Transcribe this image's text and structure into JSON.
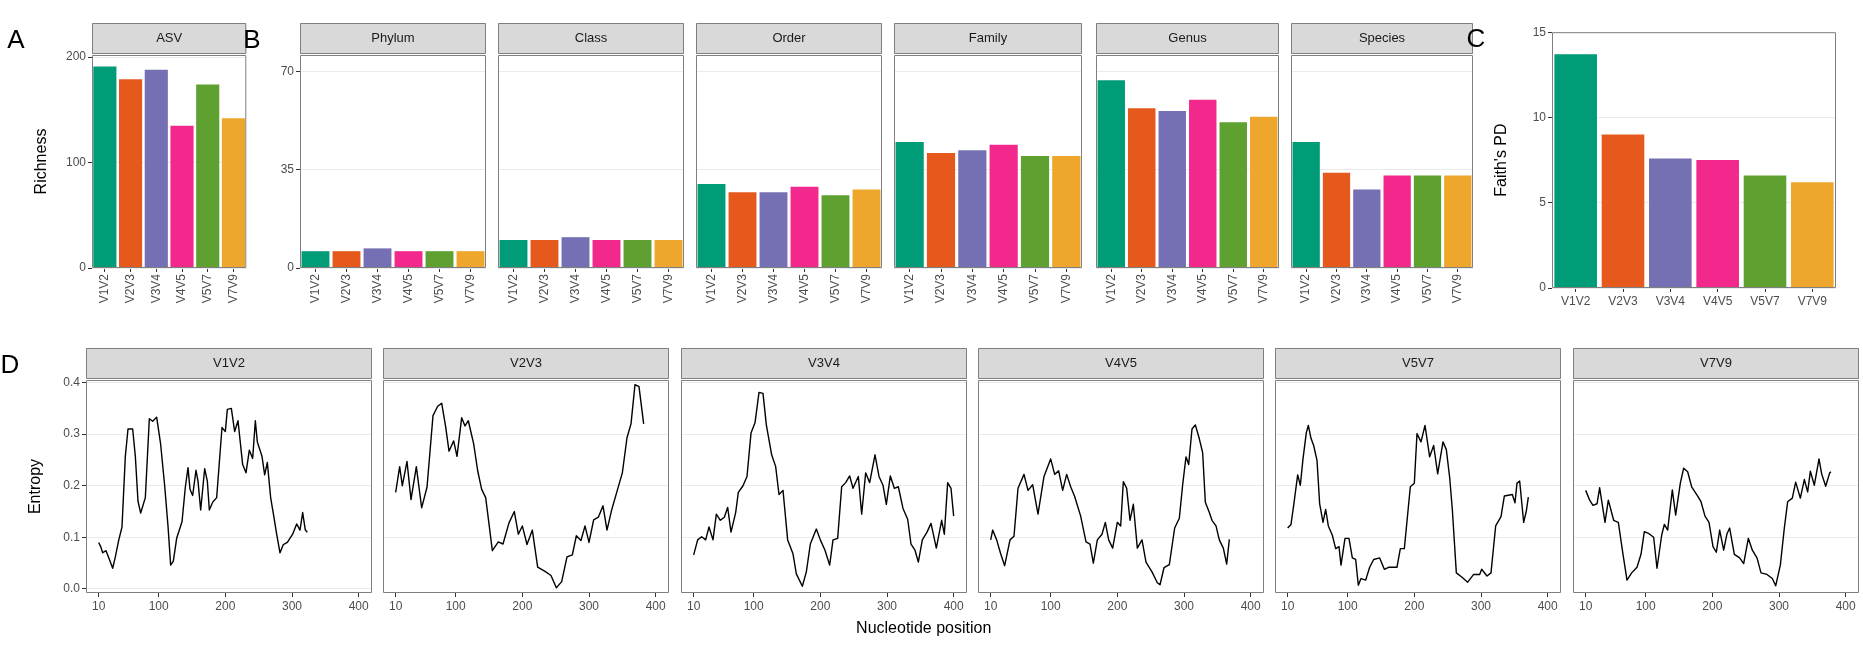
{
  "chart_data": [
    {
      "type": "bar",
      "title": "A",
      "subtitle": "ASV",
      "ylabel": "Richness",
      "categories": [
        "V1V2",
        "V2V3",
        "V3V4",
        "V4V5",
        "V5V7",
        "V7V9"
      ],
      "values": [
        191,
        179,
        188,
        135,
        174,
        142
      ],
      "colors": [
        "#009b77",
        "#e5591c",
        "#7470b3",
        "#f2288c",
        "#5fa131",
        "#eea62c"
      ],
      "ylim": [
        0,
        202
      ],
      "yticks": [
        0,
        100,
        200
      ],
      "grid": "y"
    },
    {
      "type": "bar",
      "title": "B",
      "subtitle": "Phylum",
      "categories": [
        "V1V2",
        "V2V3",
        "V3V4",
        "V4V5",
        "V5V7",
        "V7V9"
      ],
      "values": [
        6,
        6,
        7,
        6,
        6,
        6
      ],
      "colors": [
        "#009b77",
        "#e5591c",
        "#7470b3",
        "#f2288c",
        "#5fa131",
        "#eea62c"
      ],
      "ylim": [
        0,
        76
      ],
      "yticks": [
        0,
        35,
        70
      ],
      "grid": "y"
    },
    {
      "type": "bar",
      "subtitle": "Class",
      "categories": [
        "V1V2",
        "V2V3",
        "V3V4",
        "V4V5",
        "V5V7",
        "V7V9"
      ],
      "values": [
        10,
        10,
        11,
        10,
        10,
        10
      ],
      "colors": [
        "#009b77",
        "#e5591c",
        "#7470b3",
        "#f2288c",
        "#5fa131",
        "#eea62c"
      ],
      "ylim": [
        0,
        76
      ],
      "yticks": [
        0,
        35,
        70
      ],
      "grid": "y",
      "tick_labels": "x"
    },
    {
      "type": "bar",
      "subtitle": "Order",
      "categories": [
        "V1V2",
        "V2V3",
        "V3V4",
        "V4V5",
        "V5V7",
        "V7V9"
      ],
      "values": [
        30,
        27,
        27,
        29,
        26,
        28
      ],
      "colors": [
        "#009b77",
        "#e5591c",
        "#7470b3",
        "#f2288c",
        "#5fa131",
        "#eea62c"
      ],
      "ylim": [
        0,
        76
      ],
      "yticks": [
        0,
        35,
        70
      ],
      "grid": "y",
      "tick_labels": "x"
    },
    {
      "type": "bar",
      "subtitle": "Family",
      "categories": [
        "V1V2",
        "V2V3",
        "V3V4",
        "V4V5",
        "V5V7",
        "V7V9"
      ],
      "values": [
        45,
        41,
        42,
        44,
        40,
        40
      ],
      "colors": [
        "#009b77",
        "#e5591c",
        "#7470b3",
        "#f2288c",
        "#5fa131",
        "#eea62c"
      ],
      "ylim": [
        0,
        76
      ],
      "yticks": [
        0,
        35,
        70
      ],
      "grid": "y",
      "tick_labels": "x"
    },
    {
      "type": "bar",
      "subtitle": "Genus",
      "categories": [
        "V1V2",
        "V2V3",
        "V3V4",
        "V4V5",
        "V5V7",
        "V7V9"
      ],
      "values": [
        67,
        57,
        56,
        60,
        52,
        54
      ],
      "colors": [
        "#009b77",
        "#e5591c",
        "#7470b3",
        "#f2288c",
        "#5fa131",
        "#eea62c"
      ],
      "ylim": [
        0,
        76
      ],
      "yticks": [
        0,
        35,
        70
      ],
      "grid": "y",
      "tick_labels": "x"
    },
    {
      "type": "bar",
      "subtitle": "Species",
      "categories": [
        "V1V2",
        "V2V3",
        "V3V4",
        "V4V5",
        "V5V7",
        "V7V9"
      ],
      "values": [
        45,
        34,
        28,
        33,
        33,
        33
      ],
      "colors": [
        "#009b77",
        "#e5591c",
        "#7470b3",
        "#f2288c",
        "#5fa131",
        "#eea62c"
      ],
      "ylim": [
        0,
        76
      ],
      "yticks": [
        0,
        35,
        70
      ],
      "grid": "y",
      "tick_labels": "x"
    },
    {
      "type": "bar",
      "title": "C",
      "ylabel": "Faith's PD",
      "categories": [
        "V1V2",
        "V2V3",
        "V3V4",
        "V4V5",
        "V5V7",
        "V7V9"
      ],
      "values": [
        13.7,
        9.0,
        7.6,
        7.5,
        6.6,
        6.2
      ],
      "colors": [
        "#009b77",
        "#e5591c",
        "#7470b3",
        "#f2288c",
        "#5fa131",
        "#eea62c"
      ],
      "ylim": [
        0,
        15
      ],
      "yticks": [
        0,
        5,
        10,
        15
      ],
      "grid": "y"
    },
    {
      "type": "line",
      "title": "D",
      "subtitle": "V1V2",
      "ylabel": "Entropy",
      "color": "#000000",
      "xlim": [
        -9,
        420
      ],
      "xticks": [
        10,
        100,
        200,
        300,
        400
      ],
      "ylim": [
        -0.008,
        0.405
      ],
      "yticks": [
        {
          "value": 0,
          "label": "0.0"
        },
        0.1,
        0.2,
        0.3,
        0.4
      ],
      "grid": "y",
      "x": [
        10,
        13,
        16,
        21,
        27,
        31,
        35,
        40,
        45,
        50,
        54,
        61,
        65,
        69,
        73,
        80,
        86,
        91,
        97,
        103,
        109,
        114,
        118,
        122,
        127,
        135,
        140,
        144,
        147,
        151,
        156,
        159,
        163,
        169,
        173,
        176,
        181,
        187,
        195,
        200,
        203,
        209,
        214,
        219,
        226,
        231,
        236,
        241,
        245,
        248,
        255,
        259,
        263,
        268,
        273,
        277,
        282,
        287,
        293,
        301,
        307,
        312,
        316,
        320,
        323
      ],
      "values": [
        0.09,
        0.082,
        0.07,
        0.074,
        0.054,
        0.04,
        0.062,
        0.094,
        0.12,
        0.257,
        0.31,
        0.31,
        0.257,
        0.17,
        0.147,
        0.177,
        0.33,
        0.325,
        0.333,
        0.28,
        0.2,
        0.122,
        0.046,
        0.054,
        0.098,
        0.13,
        0.197,
        0.235,
        0.193,
        0.181,
        0.23,
        0.209,
        0.153,
        0.233,
        0.209,
        0.153,
        0.168,
        0.177,
        0.313,
        0.305,
        0.348,
        0.35,
        0.305,
        0.326,
        0.241,
        0.225,
        0.269,
        0.253,
        0.326,
        0.285,
        0.257,
        0.221,
        0.245,
        0.177,
        0.138,
        0.106,
        0.07,
        0.086,
        0.09,
        0.106,
        0.126,
        0.114,
        0.148,
        0.114,
        0.11
      ]
    },
    {
      "type": "line",
      "subtitle": "V2V3",
      "color": "#000000",
      "xlim": [
        -9,
        420
      ],
      "xticks": [
        10,
        100,
        200,
        300,
        400
      ],
      "ylim": [
        -0.008,
        0.405
      ],
      "yticks": [
        0.1,
        0.2,
        0.3,
        0.4
      ],
      "grid": "y",
      "tick_labels": "x",
      "x": [
        10,
        16,
        20,
        27,
        33,
        41,
        49,
        57,
        66,
        73,
        79,
        85,
        90,
        97,
        102,
        109,
        114,
        119,
        127,
        133,
        139,
        145,
        150,
        155,
        164,
        171,
        180,
        188,
        194,
        200,
        207,
        215,
        223,
        234,
        243,
        251,
        259,
        267,
        275,
        281,
        288,
        294,
        300,
        307,
        314,
        321,
        327,
        334,
        342,
        350,
        357,
        363,
        369,
        375,
        382
      ],
      "values": [
        0.187,
        0.237,
        0.2,
        0.247,
        0.173,
        0.237,
        0.157,
        0.197,
        0.336,
        0.354,
        0.36,
        0.314,
        0.267,
        0.287,
        0.257,
        0.332,
        0.316,
        0.326,
        0.281,
        0.229,
        0.193,
        0.177,
        0.126,
        0.074,
        0.091,
        0.087,
        0.128,
        0.15,
        0.106,
        0.122,
        0.086,
        0.114,
        0.042,
        0.034,
        0.026,
        0.002,
        0.014,
        0.062,
        0.066,
        0.103,
        0.094,
        0.122,
        0.09,
        0.134,
        0.139,
        0.161,
        0.114,
        0.153,
        0.189,
        0.225,
        0.293,
        0.32,
        0.396,
        0.392,
        0.32
      ]
    },
    {
      "type": "line",
      "subtitle": "V3V4",
      "xlabel": "Nucleotide position",
      "color": "#000000",
      "xlim": [
        -9,
        420
      ],
      "xticks": [
        10,
        100,
        200,
        300,
        400
      ],
      "ylim": [
        -0.008,
        0.405
      ],
      "yticks": [
        0.1,
        0.2,
        0.3,
        0.4
      ],
      "grid": "y",
      "tick_labels": "x",
      "x": [
        10,
        16,
        22,
        28,
        33,
        39,
        44,
        50,
        56,
        61,
        66,
        73,
        77,
        84,
        90,
        96,
        102,
        108,
        114,
        119,
        127,
        133,
        138,
        144,
        151,
        159,
        164,
        173,
        179,
        185,
        194,
        200,
        207,
        214,
        219,
        226,
        232,
        238,
        244,
        249,
        257,
        262,
        268,
        274,
        282,
        288,
        294,
        299,
        305,
        311,
        317,
        324,
        331,
        336,
        342,
        347,
        353,
        360,
        366,
        374,
        382,
        386,
        391,
        396,
        400
      ],
      "values": [
        0.066,
        0.095,
        0.101,
        0.095,
        0.12,
        0.095,
        0.145,
        0.133,
        0.139,
        0.158,
        0.11,
        0.148,
        0.187,
        0.2,
        0.218,
        0.302,
        0.322,
        0.381,
        0.379,
        0.318,
        0.26,
        0.237,
        0.183,
        0.191,
        0.095,
        0.068,
        0.029,
        0.005,
        0.033,
        0.087,
        0.116,
        0.095,
        0.075,
        0.046,
        0.095,
        0.098,
        0.198,
        0.206,
        0.219,
        0.195,
        0.218,
        0.145,
        0.225,
        0.206,
        0.26,
        0.218,
        0.201,
        0.164,
        0.219,
        0.195,
        0.198,
        0.156,
        0.135,
        0.087,
        0.075,
        0.052,
        0.095,
        0.11,
        0.127,
        0.079,
        0.133,
        0.106,
        0.206,
        0.195,
        0.141
      ]
    },
    {
      "type": "line",
      "subtitle": "V4V5",
      "color": "#000000",
      "xlim": [
        -9,
        420
      ],
      "xticks": [
        10,
        100,
        200,
        300,
        400
      ],
      "ylim": [
        -0.008,
        0.405
      ],
      "yticks": [
        0.1,
        0.2,
        0.3,
        0.4
      ],
      "grid": "y",
      "tick_labels": "x",
      "x": [
        10,
        13,
        19,
        25,
        31,
        39,
        45,
        51,
        60,
        66,
        73,
        81,
        90,
        100,
        106,
        112,
        118,
        124,
        130,
        136,
        145,
        153,
        159,
        164,
        170,
        177,
        182,
        187,
        193,
        200,
        205,
        209,
        214,
        219,
        224,
        230,
        237,
        243,
        252,
        260,
        264,
        270,
        278,
        286,
        293,
        298,
        303,
        307,
        312,
        317,
        323,
        328,
        332,
        338,
        342,
        348,
        353,
        359,
        364,
        368
      ],
      "values": [
        0.095,
        0.114,
        0.095,
        0.068,
        0.045,
        0.095,
        0.102,
        0.195,
        0.222,
        0.191,
        0.202,
        0.145,
        0.218,
        0.252,
        0.222,
        0.229,
        0.191,
        0.222,
        0.198,
        0.179,
        0.141,
        0.091,
        0.087,
        0.05,
        0.095,
        0.106,
        0.129,
        0.095,
        0.079,
        0.129,
        0.122,
        0.208,
        0.195,
        0.133,
        0.164,
        0.079,
        0.095,
        0.052,
        0.033,
        0.012,
        0.008,
        0.041,
        0.047,
        0.118,
        0.137,
        0.202,
        0.256,
        0.241,
        0.31,
        0.318,
        0.291,
        0.264,
        0.168,
        0.148,
        0.133,
        0.122,
        0.095,
        0.079,
        0.048,
        0.096
      ]
    },
    {
      "type": "line",
      "subtitle": "V5V7",
      "color": "#000000",
      "xlim": [
        -9,
        420
      ],
      "xticks": [
        10,
        100,
        200,
        300,
        400
      ],
      "ylim": [
        -0.008,
        0.405
      ],
      "yticks": [
        0.1,
        0.2,
        0.3,
        0.4
      ],
      "grid": "y",
      "tick_labels": "x",
      "x": [
        10,
        15,
        19,
        25,
        29,
        33,
        38,
        41,
        45,
        49,
        54,
        58,
        63,
        67,
        71,
        77,
        82,
        87,
        90,
        96,
        102,
        107,
        112,
        116,
        120,
        127,
        133,
        139,
        148,
        155,
        162,
        174,
        179,
        185,
        194,
        200,
        204,
        210,
        216,
        223,
        229,
        235,
        243,
        248,
        253,
        257,
        263,
        272,
        280,
        289,
        298,
        301,
        309,
        315,
        322,
        330,
        335,
        347,
        351,
        354,
        358,
        364,
        368,
        371
      ],
      "values": [
        0.118,
        0.125,
        0.162,
        0.221,
        0.201,
        0.252,
        0.303,
        0.317,
        0.292,
        0.278,
        0.249,
        0.165,
        0.129,
        0.154,
        0.122,
        0.104,
        0.078,
        0.082,
        0.046,
        0.098,
        0.098,
        0.06,
        0.057,
        0.007,
        0.02,
        0.017,
        0.042,
        0.057,
        0.06,
        0.038,
        0.042,
        0.042,
        0.078,
        0.078,
        0.198,
        0.205,
        0.301,
        0.285,
        0.317,
        0.256,
        0.278,
        0.223,
        0.285,
        0.27,
        0.216,
        0.154,
        0.031,
        0.022,
        0.013,
        0.028,
        0.028,
        0.038,
        0.025,
        0.031,
        0.122,
        0.14,
        0.18,
        0.183,
        0.167,
        0.205,
        0.209,
        0.129,
        0.151,
        0.178
      ]
    },
    {
      "type": "line",
      "subtitle": "V7V9",
      "color": "#000000",
      "xlim": [
        -9,
        420
      ],
      "xticks": [
        10,
        100,
        200,
        300,
        400
      ],
      "ylim": [
        -0.008,
        0.405
      ],
      "yticks": [
        0.1,
        0.2,
        0.3,
        0.4
      ],
      "grid": "y",
      "tick_labels": "x",
      "x": [
        10,
        16,
        21,
        27,
        31,
        39,
        44,
        52,
        59,
        66,
        72,
        79,
        87,
        93,
        98,
        105,
        112,
        117,
        124,
        128,
        133,
        140,
        145,
        152,
        157,
        163,
        169,
        178,
        183,
        189,
        195,
        201,
        206,
        211,
        217,
        222,
        226,
        233,
        241,
        247,
        254,
        260,
        267,
        273,
        282,
        290,
        295,
        302,
        308,
        313,
        320,
        325,
        332,
        338,
        343,
        347,
        353,
        360,
        364,
        370,
        376,
        378
      ],
      "values": [
        0.191,
        0.172,
        0.162,
        0.165,
        0.196,
        0.129,
        0.172,
        0.133,
        0.129,
        0.067,
        0.017,
        0.031,
        0.042,
        0.067,
        0.111,
        0.107,
        0.1,
        0.04,
        0.104,
        0.125,
        0.114,
        0.192,
        0.143,
        0.205,
        0.234,
        0.227,
        0.198,
        0.18,
        0.169,
        0.141,
        0.129,
        0.082,
        0.071,
        0.114,
        0.075,
        0.107,
        0.118,
        0.067,
        0.06,
        0.049,
        0.098,
        0.075,
        0.06,
        0.031,
        0.028,
        0.02,
        0.006,
        0.046,
        0.118,
        0.169,
        0.176,
        0.207,
        0.176,
        0.212,
        0.188,
        0.228,
        0.201,
        0.252,
        0.223,
        0.199,
        0.225,
        0.227
      ]
    }
  ]
}
